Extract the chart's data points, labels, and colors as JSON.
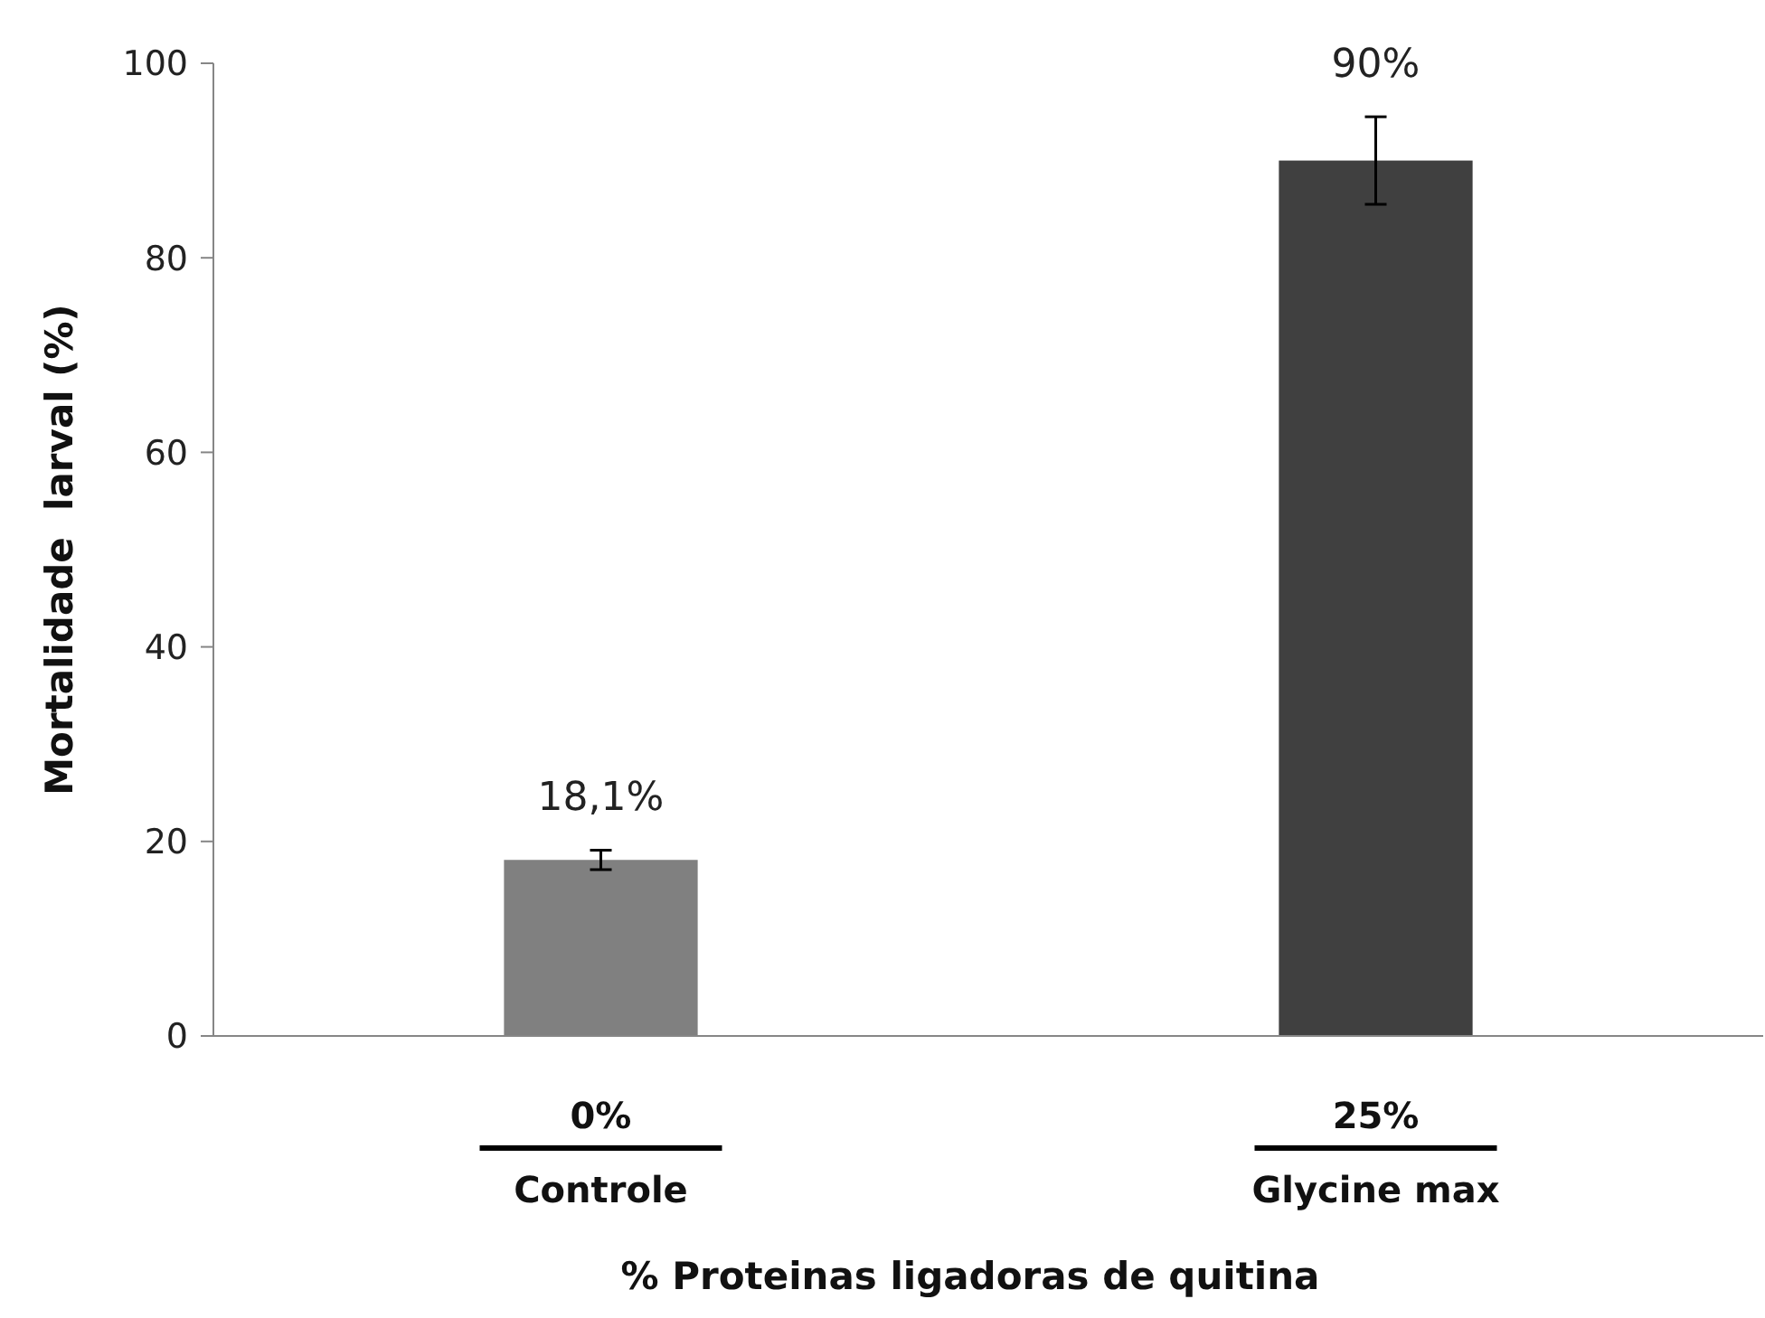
{
  "chart_data": {
    "type": "bar",
    "xlabel": "% Proteinas ligadoras de quitina",
    "ylabel": "Mortalidade  larval (%)",
    "categories": [
      "0%\nControle",
      "25%\nGlycine max"
    ],
    "values": [
      18.1,
      90
    ],
    "colors": [
      "#808080",
      "#404040"
    ],
    "errors": [
      1,
      4.5
    ],
    "value_labels": [
      "18,1%",
      "90%"
    ],
    "ylim": [
      0,
      100
    ],
    "yticks": [
      0,
      20,
      40,
      60,
      80,
      100
    ],
    "grid": false
  }
}
